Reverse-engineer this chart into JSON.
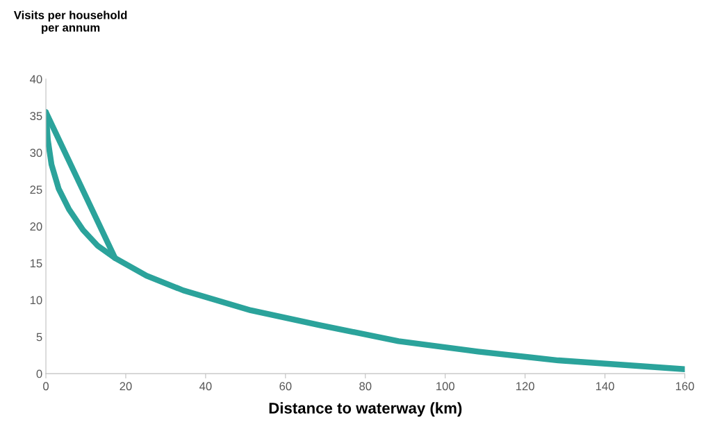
{
  "chart_data": {
    "type": "line",
    "xlabel": "Distance to waterway (km)",
    "ylabel": "Visits per household\nper annum",
    "xlim": [
      0,
      160
    ],
    "xticks": [
      0,
      20,
      40,
      60,
      80,
      100,
      120,
      140,
      160
    ],
    "ylim": [
      0,
      40
    ],
    "yticks": [
      0,
      5,
      10,
      15,
      20,
      25,
      30,
      35,
      40
    ],
    "grid": false,
    "marker": "none",
    "line_style": "solid",
    "series": [
      {
        "color": "#2ba39b",
        "x": [
          0,
          0.5,
          1.4,
          3.2,
          5.8,
          9.3,
          12.9,
          17.3,
          25.2,
          34.4,
          51.3,
          68.4,
          88.3,
          108.2,
          128.3,
          160
        ],
        "values": [
          35.5,
          31.7,
          28.4,
          25.1,
          22.3,
          19.5,
          17.4,
          15.7,
          13.3,
          11.3,
          8.6,
          6.6,
          4.4,
          3.0,
          1.8,
          0.6
        ]
      },
      {
        "color": "#2ba39b",
        "x": [
          0,
          17.3
        ],
        "values": [
          35.5,
          15.7
        ]
      }
    ]
  }
}
